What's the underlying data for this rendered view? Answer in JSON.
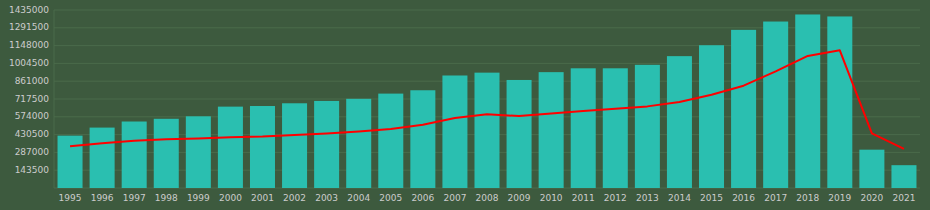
{
  "chart_data": {
    "type": "bar",
    "categories": [
      "1995",
      "1996",
      "1997",
      "1998",
      "1999",
      "2000",
      "2001",
      "2002",
      "2003",
      "2004",
      "2005",
      "2006",
      "2007",
      "2008",
      "2009",
      "2010",
      "2011",
      "2012",
      "2013",
      "2014",
      "2015",
      "2016",
      "2017",
      "2018",
      "2019",
      "2020",
      "2021"
    ],
    "series": [
      {
        "type": "bar",
        "color": "#2abfb0",
        "values": [
          422000,
          487000,
          536000,
          558000,
          578000,
          656000,
          661000,
          683000,
          702000,
          719000,
          761000,
          788000,
          907000,
          930000,
          871000,
          934000,
          965000,
          965000,
          993000,
          1063000,
          1151000,
          1275000,
          1342000,
          1399000,
          1383000,
          309000,
          184000
        ]
      },
      {
        "type": "line",
        "color": "#ff0000",
        "values": [
          336000,
          360000,
          380000,
          393000,
          400000,
          410000,
          415000,
          428000,
          440000,
          455000,
          475000,
          510000,
          565000,
          595000,
          580000,
          600000,
          620000,
          638000,
          658000,
          693000,
          752000,
          825000,
          940000,
          1065000,
          1110000,
          440000,
          315000
        ]
      }
    ],
    "ylim": [
      0,
      1435000
    ],
    "yticks": [
      143500,
      287000,
      430500,
      574000,
      717500,
      861000,
      1004500,
      1148000,
      1291500,
      1435000
    ],
    "grid": true
  }
}
